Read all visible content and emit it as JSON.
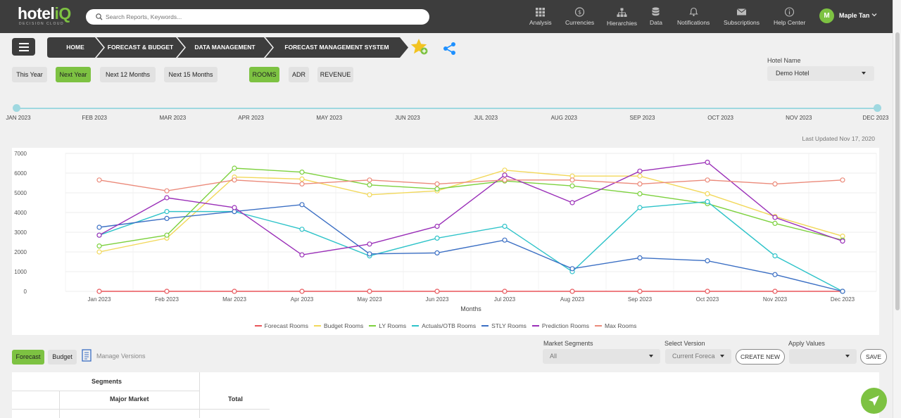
{
  "brand": {
    "name": "hotel",
    "name_accent": "iQ",
    "tagline": "DECISION CLOUD"
  },
  "search": {
    "placeholder": "Search Reports, Keywords..."
  },
  "nav": [
    {
      "label": "Analysis",
      "icon": "analysis-icon"
    },
    {
      "label": "Currencies",
      "icon": "currency-icon"
    },
    {
      "label": "Hierarchies",
      "icon": "hierarchy-icon"
    },
    {
      "label": "Data",
      "icon": "database-icon"
    },
    {
      "label": "Notifications",
      "icon": "bell-icon"
    },
    {
      "label": "Subscriptions",
      "icon": "envelope-icon"
    },
    {
      "label": "Help Center",
      "icon": "info-icon"
    }
  ],
  "user": {
    "initial": "M",
    "name": "Maple Tan"
  },
  "breadcrumb": [
    "HOME",
    "FORECAST & BUDGET",
    "DATA MANAGEMENT",
    "FORECAST MANAGEMENT SYSTEM"
  ],
  "periods": [
    "This Year",
    "Next Year",
    "Next 12 Months",
    "Next 15 Months"
  ],
  "active_period": "Next Year",
  "metrics": [
    "ROOMS",
    "ADR",
    "REVENUE"
  ],
  "active_metric": "ROOMS",
  "hotel": {
    "label": "Hotel Name",
    "value": "Demo Hotel"
  },
  "timeline": [
    "JAN 2023",
    "FEB 2023",
    "MAR 2023",
    "APR 2023",
    "MAY 2023",
    "JUN 2023",
    "JUL 2023",
    "AUG 2023",
    "SEP 2023",
    "OCT 2023",
    "NOV 2023",
    "DEC 2023"
  ],
  "last_updated": "Last Updated Nov 17, 2020",
  "chart_data": {
    "type": "line",
    "categories": [
      "Jan 2023",
      "Feb 2023",
      "Mar 2023",
      "Apr 2023",
      "May 2023",
      "Jun 2023",
      "Jul 2023",
      "Aug 2023",
      "Sep 2023",
      "Oct 2023",
      "Nov 2023",
      "Dec 2023"
    ],
    "xlabel": "Months",
    "ylabel": "",
    "ylim": [
      0,
      7000
    ],
    "yticks": [
      0,
      1000,
      2000,
      3000,
      4000,
      5000,
      6000,
      7000
    ],
    "grid": true,
    "legend": "bottom",
    "series": [
      {
        "name": "Forecast Rooms",
        "color": "#e8555a",
        "values": [
          0,
          0,
          0,
          0,
          0,
          0,
          0,
          0,
          0,
          0,
          0,
          0
        ]
      },
      {
        "name": "Budget Rooms",
        "color": "#f2d85a",
        "values": [
          2000,
          2700,
          5800,
          5700,
          4900,
          5100,
          6150,
          5850,
          5850,
          4950,
          3800,
          2800
        ]
      },
      {
        "name": "LY Rooms",
        "color": "#7dd13e",
        "values": [
          2300,
          2850,
          6250,
          6050,
          5400,
          5200,
          5600,
          5350,
          4950,
          4450,
          3450,
          2600
        ]
      },
      {
        "name": "Actuals/OTB Rooms",
        "color": "#2ec3c9",
        "values": [
          2850,
          4050,
          4050,
          3150,
          1800,
          2700,
          3300,
          1000,
          4250,
          4550,
          1800,
          0
        ]
      },
      {
        "name": "STLY Rooms",
        "color": "#3b6fc4",
        "values": [
          3250,
          3700,
          4050,
          4400,
          1900,
          1950,
          2600,
          1150,
          1700,
          1550,
          850,
          0
        ]
      },
      {
        "name": "Prediction Rooms",
        "color": "#9a2fb8",
        "values": [
          2850,
          4750,
          4250,
          1850,
          2400,
          3300,
          5900,
          4500,
          6100,
          6550,
          3750,
          2550
        ]
      },
      {
        "name": "Max Rooms",
        "color": "#eb8a7a",
        "values": [
          5650,
          5100,
          5650,
          5450,
          5650,
          5450,
          5650,
          5650,
          5450,
          5650,
          5450,
          5650
        ]
      }
    ]
  },
  "bottom": {
    "forecast_label": "Forecast",
    "budget_label": "Budget",
    "manage_versions": "Manage Versions",
    "market_segments_label": "Market Segments",
    "market_segments_value": "All",
    "select_version_label": "Select Version",
    "select_version_value": "Current Foreca",
    "create_new": "CREATE NEW",
    "apply_values_label": "Apply Values",
    "apply_values_value": "",
    "save": "SAVE"
  },
  "grid": {
    "segments": "Segments",
    "major_market": "Major Market",
    "total": "Total"
  }
}
